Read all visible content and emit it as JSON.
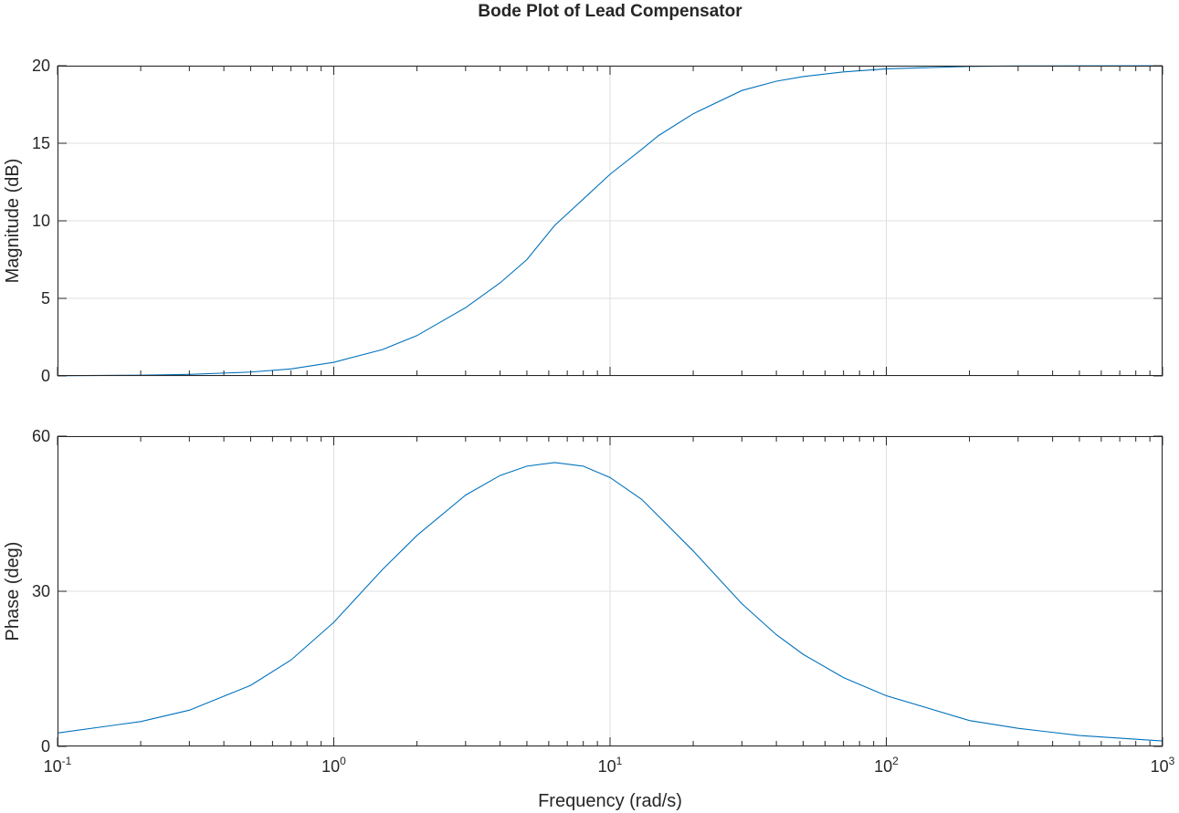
{
  "chart_data": {
    "type": "line",
    "title": "Bode Plot of Lead Compensator",
    "xlabel": "Frequency (rad/s)",
    "xscale": "log",
    "xlim": [
      0.1,
      1000
    ],
    "x_tick_labels": [
      {
        "base": "10",
        "exp": "-1"
      },
      {
        "base": "10",
        "exp": "0"
      },
      {
        "base": "10",
        "exp": "1"
      },
      {
        "base": "10",
        "exp": "2"
      },
      {
        "base": "10",
        "exp": "3"
      }
    ],
    "grid": true,
    "line_color": "#0072bd",
    "panels": [
      {
        "ylabel": "Magnitude (dB)",
        "ylim": [
          0,
          20
        ],
        "yticks": [
          "0",
          "5",
          "10",
          "15",
          "20"
        ],
        "series": [
          {
            "x": [
              0.1,
              0.2,
              0.3,
              0.5,
              0.7,
              1,
              1.5,
              2,
              3,
              4,
              5,
              6.3,
              8,
              10,
              13,
              15,
              20,
              30,
              40,
              50,
              70,
              100,
              200,
              300,
              500,
              1000
            ],
            "y": [
              0.01,
              0.05,
              0.1,
              0.25,
              0.45,
              0.88,
              1.7,
              2.6,
              4.4,
              6.0,
              7.5,
              9.7,
              11.4,
              13.0,
              14.6,
              15.5,
              16.9,
              18.4,
              19.0,
              19.3,
              19.6,
              19.8,
              19.95,
              19.98,
              19.99,
              20.0
            ]
          }
        ]
      },
      {
        "ylabel": "Phase (deg)",
        "ylim": [
          0,
          60
        ],
        "yticks": [
          "0",
          "30",
          "60"
        ],
        "series": [
          {
            "x": [
              0.1,
              0.2,
              0.3,
              0.5,
              0.7,
              1,
              1.5,
              2,
              3,
              4,
              5,
              6.3,
              8,
              10,
              13,
              15,
              20,
              30,
              40,
              50,
              70,
              100,
              200,
              300,
              500,
              1000
            ],
            "y": [
              2.6,
              4.8,
              7.0,
              11.8,
              16.7,
              24.0,
              34.2,
              40.8,
              48.6,
              52.4,
              54.2,
              54.9,
              54.2,
              52.0,
              47.8,
              44.5,
              37.8,
              27.6,
              21.6,
              17.8,
              13.3,
              9.8,
              5.0,
              3.5,
              2.1,
              1.05
            ]
          }
        ]
      }
    ]
  }
}
